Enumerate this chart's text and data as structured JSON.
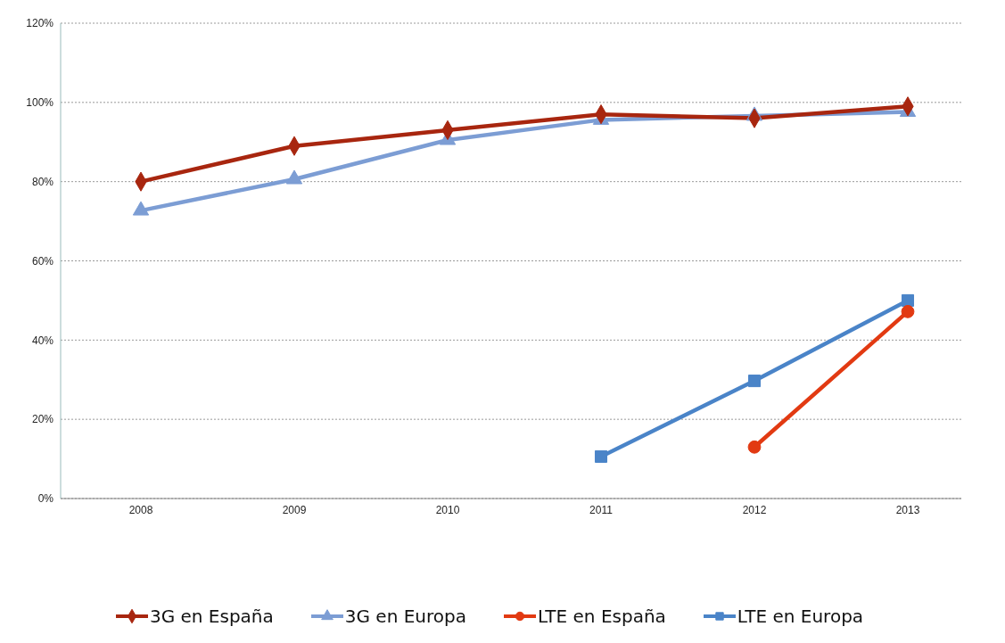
{
  "chart_data": {
    "type": "line",
    "categories": [
      "2008",
      "2009",
      "2010",
      "2011",
      "2012",
      "2013"
    ],
    "series": [
      {
        "name": "3G en España",
        "color": "#a8260f",
        "marker": "diamond",
        "values": [
          80,
          89,
          93,
          97,
          96,
          99
        ]
      },
      {
        "name": "3G en Europa",
        "color": "#7c9dd4",
        "marker": "triangle",
        "values": [
          72.7,
          80.6,
          90.5,
          95.6,
          96.6,
          97.6
        ]
      },
      {
        "name": "LTE en España",
        "color": "#e23a12",
        "marker": "circle",
        "values": [
          null,
          null,
          null,
          null,
          13,
          47.2
        ]
      },
      {
        "name": "LTE en Europa",
        "color": "#4a84c8",
        "marker": "square",
        "values": [
          null,
          null,
          null,
          10.6,
          29.7,
          50
        ]
      }
    ],
    "ylim": [
      0,
      120
    ],
    "yticks": [
      {
        "value": 0,
        "label": "0%"
      },
      {
        "value": 20,
        "label": "20%"
      },
      {
        "value": 40,
        "label": "40%"
      },
      {
        "value": 60,
        "label": "60%"
      },
      {
        "value": 80,
        "label": "80%"
      },
      {
        "value": 100,
        "label": "100%"
      },
      {
        "value": 120,
        "label": "120%"
      }
    ],
    "grid": "y",
    "legend": "bottom",
    "line_style": "solid"
  }
}
